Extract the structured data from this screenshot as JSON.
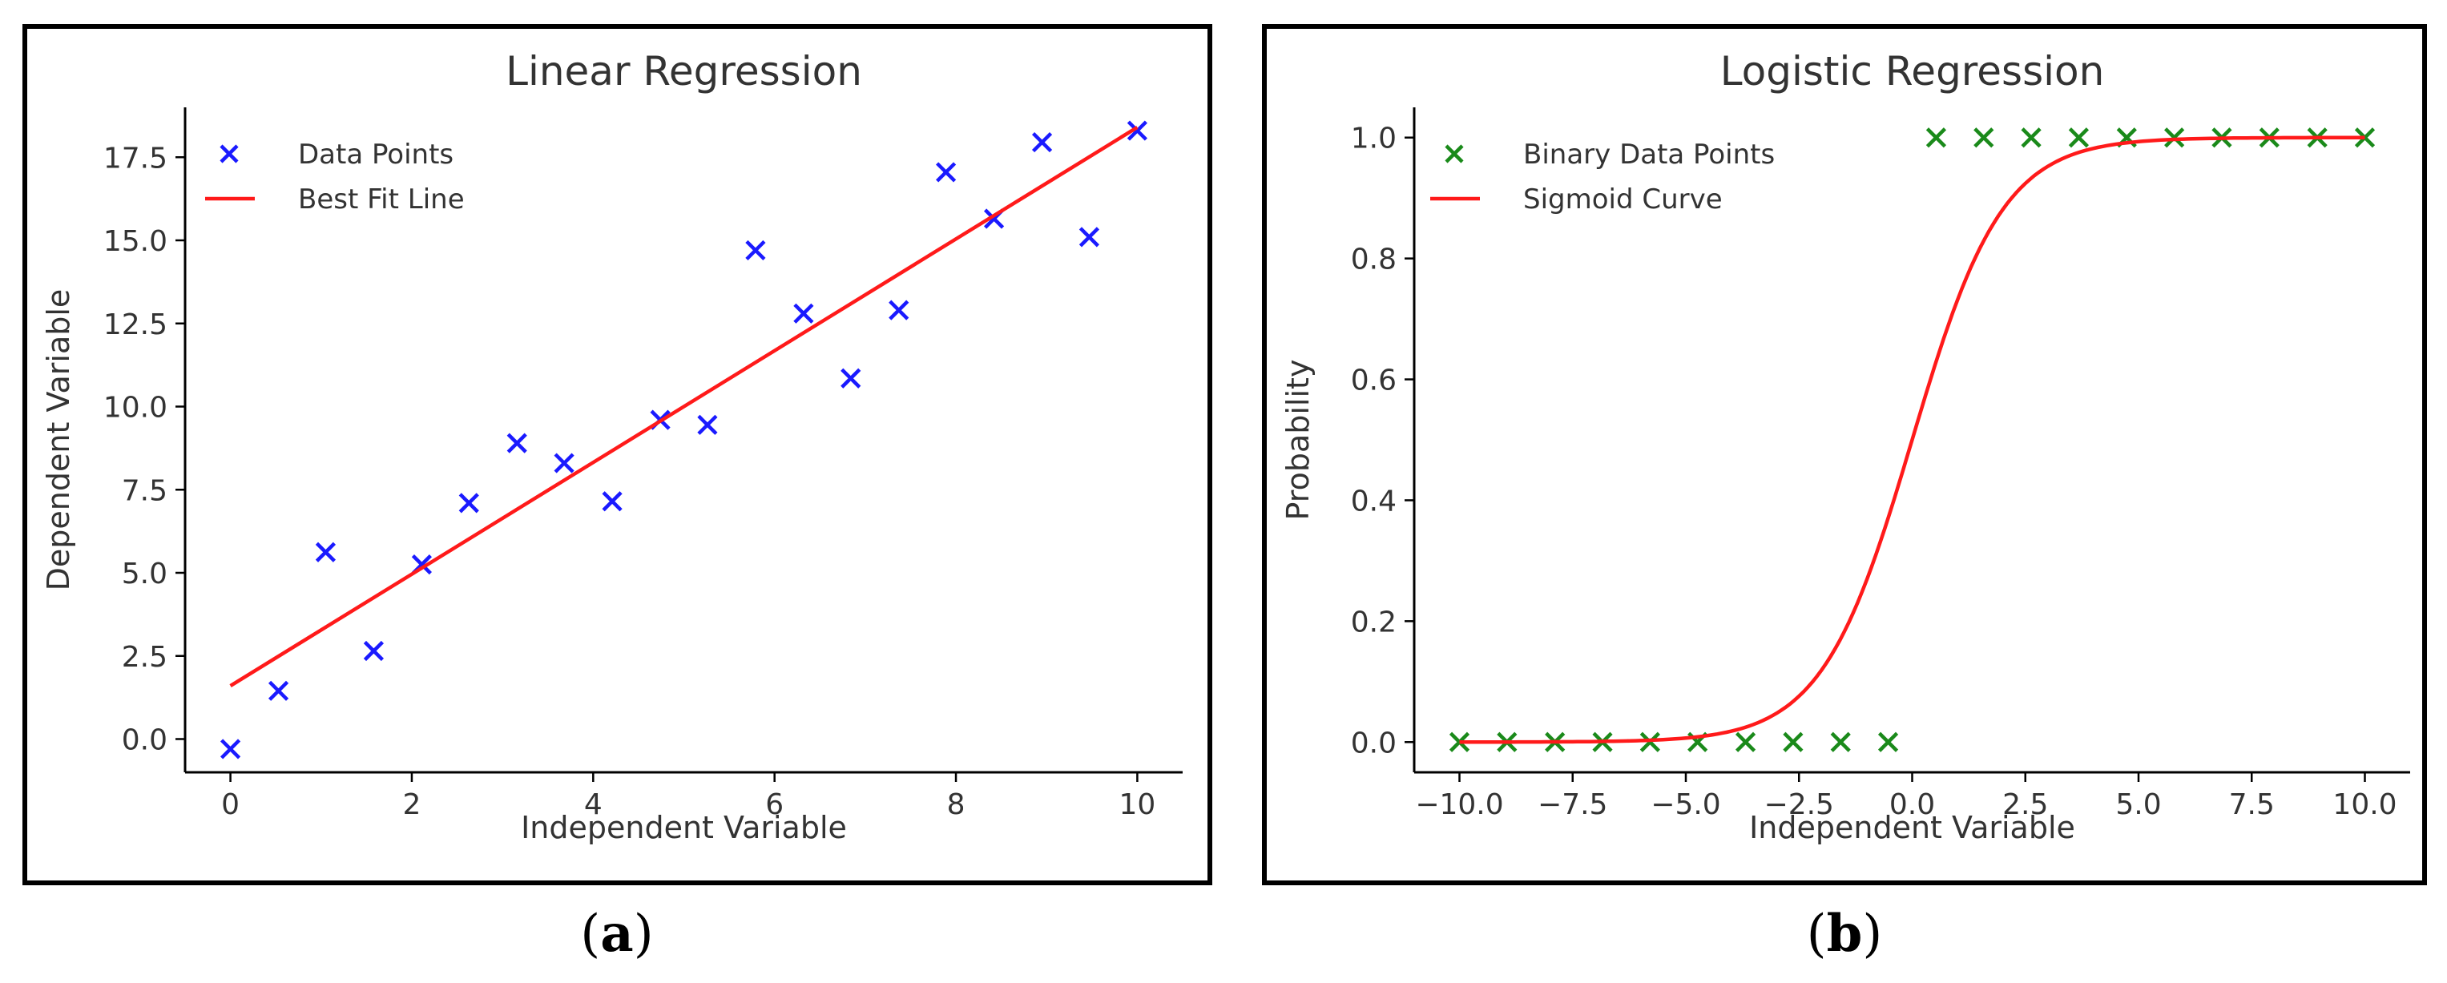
{
  "captions": {
    "a": "a",
    "b": "b"
  },
  "chart_data": [
    {
      "type": "scatter",
      "title": "Linear Regression",
      "xlabel": "Independent Variable",
      "ylabel": "Dependent Variable",
      "xlim": [
        -0.5,
        10.5
      ],
      "ylim": [
        -1.0,
        19.0
      ],
      "xticks": [
        0,
        2,
        4,
        6,
        8,
        10
      ],
      "xtick_labels": [
        "0",
        "2",
        "4",
        "6",
        "8",
        "10"
      ],
      "yticks": [
        0,
        2.5,
        5,
        7.5,
        10,
        12.5,
        15,
        17.5
      ],
      "ytick_labels": [
        "0.0",
        "2.5",
        "5.0",
        "7.5",
        "10.0",
        "12.5",
        "15.0",
        "17.5"
      ],
      "legend_position": "top-left",
      "colors": {
        "points": "#1a1aff",
        "line": "#ff1a1a"
      },
      "series": [
        {
          "name": "Data Points",
          "kind": "points",
          "marker": "x",
          "x": [
            0,
            0.53,
            1.05,
            1.58,
            2.11,
            2.63,
            3.16,
            3.68,
            4.21,
            4.74,
            5.26,
            5.79,
            6.32,
            6.84,
            7.37,
            7.89,
            8.42,
            8.95,
            9.47,
            10.0
          ],
          "y": [
            -0.3,
            1.45,
            5.62,
            2.65,
            5.25,
            7.1,
            8.9,
            8.3,
            7.15,
            9.6,
            9.45,
            14.7,
            12.8,
            10.85,
            12.9,
            17.05,
            15.65,
            17.95,
            15.1,
            18.3
          ]
        },
        {
          "name": "Best Fit Line",
          "kind": "line",
          "x": [
            0,
            10
          ],
          "y": [
            1.6,
            18.4
          ]
        }
      ]
    },
    {
      "type": "line",
      "title": "Logistic Regression",
      "xlabel": "Independent Variable",
      "ylabel": "Probability",
      "xlim": [
        -11.0,
        11.0
      ],
      "ylim": [
        -0.05,
        1.05
      ],
      "xticks": [
        -10,
        -7.5,
        -5,
        -2.5,
        0,
        2.5,
        5,
        7.5,
        10
      ],
      "xtick_labels": [
        "−10.0",
        "−7.5",
        "−5.0",
        "−2.5",
        "0.0",
        "2.5",
        "5.0",
        "7.5",
        "10.0"
      ],
      "yticks": [
        0,
        0.2,
        0.4,
        0.6,
        0.8,
        1.0
      ],
      "ytick_labels": [
        "0.0",
        "0.2",
        "0.4",
        "0.6",
        "0.8",
        "1.0"
      ],
      "legend_position": "top-left",
      "colors": {
        "points": "#1a8a1a",
        "line": "#ff1a1a"
      },
      "series": [
        {
          "name": "Binary Data Points",
          "kind": "points",
          "marker": "x",
          "x": [
            -10.0,
            -8.95,
            -7.89,
            -6.84,
            -5.79,
            -4.74,
            -3.68,
            -2.63,
            -1.58,
            -0.53,
            0.53,
            1.58,
            2.63,
            3.68,
            4.74,
            5.79,
            6.84,
            7.89,
            8.95,
            10.0
          ],
          "y": [
            0,
            0,
            0,
            0,
            0,
            0,
            0,
            0,
            0,
            0,
            1,
            1,
            1,
            1,
            1,
            1,
            1,
            1,
            1,
            1
          ]
        },
        {
          "name": "Sigmoid Curve",
          "kind": "sigmoid",
          "x": [
            -10.0,
            -9.0,
            -8.0,
            -7.0,
            -6.0,
            -5.0,
            -4.5,
            -4.0,
            -3.5,
            -3.0,
            -2.5,
            -2.0,
            -1.5,
            -1.0,
            -0.5,
            0.0,
            0.5,
            1.0,
            1.5,
            2.0,
            2.5,
            3.0,
            3.5,
            4.0,
            4.5,
            5.0,
            6.0,
            7.0,
            8.0,
            9.0,
            10.0
          ],
          "y": [
            0.0,
            0.0,
            0.0,
            0.001,
            0.002,
            0.007,
            0.011,
            0.018,
            0.029,
            0.047,
            0.076,
            0.119,
            0.182,
            0.269,
            0.377,
            0.5,
            0.622,
            0.731,
            0.818,
            0.881,
            0.924,
            0.953,
            0.971,
            0.982,
            0.989,
            0.993,
            0.998,
            0.999,
            1.0,
            1.0,
            1.0
          ]
        }
      ]
    }
  ]
}
